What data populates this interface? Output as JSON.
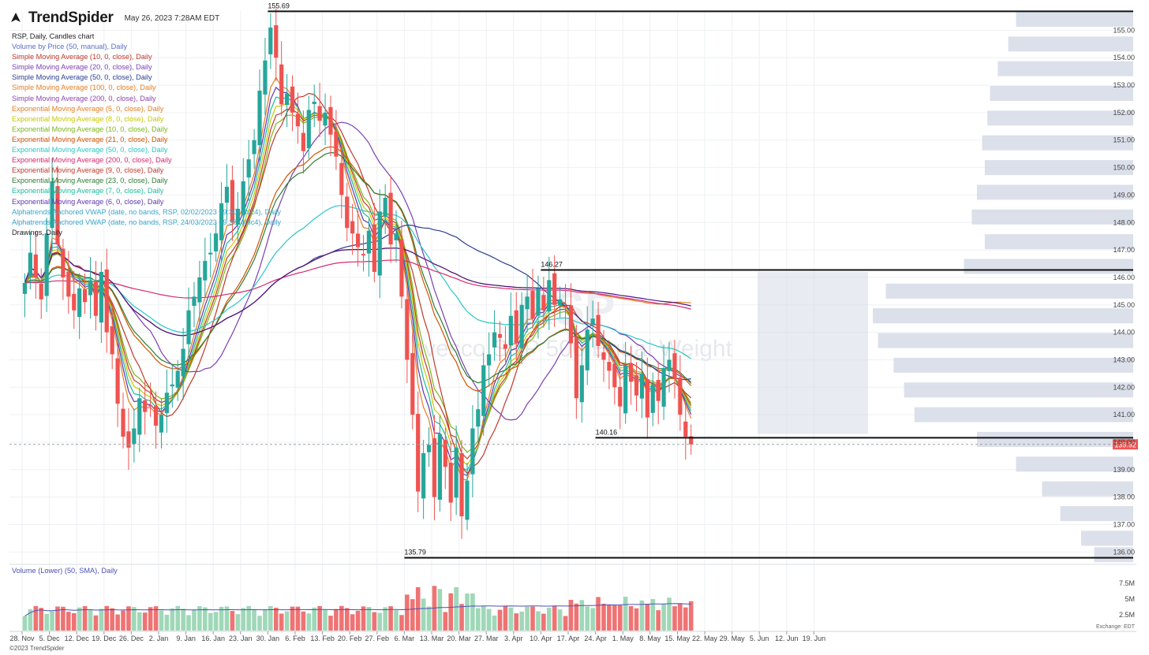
{
  "header": {
    "brand": "TrendSpider",
    "timestamp": "May 26, 2023 7:28AM EDT"
  },
  "legend": [
    {
      "text": "RSP, Daily, Candles chart",
      "color": "#222222"
    },
    {
      "text": "Volume by Price (50, manual), Daily",
      "color": "#5a6fc7"
    },
    {
      "text": "Simple Moving Average (10, 0, close), Daily",
      "color": "#c0392b"
    },
    {
      "text": "Simple Moving Average (20, 0, close), Daily",
      "color": "#7b3fb2"
    },
    {
      "text": "Simple Moving Average (50, 0, close), Daily",
      "color": "#2c3e8f"
    },
    {
      "text": "Simple Moving Average (100, 0, close), Daily",
      "color": "#e67e22"
    },
    {
      "text": "Simple Moving Average (200, 0, close), Daily",
      "color": "#8e44ad"
    },
    {
      "text": "Exponential Moving Average (5, 0, close), Daily",
      "color": "#e67e22"
    },
    {
      "text": "Exponential Moving Average (8, 0, close), Daily",
      "color": "#c9c900"
    },
    {
      "text": "Exponential Moving Average (10, 0, close), Daily",
      "color": "#7cb518"
    },
    {
      "text": "Exponential Moving Average (21, 0, close), Daily",
      "color": "#d35400"
    },
    {
      "text": "Exponential Moving Average (50, 0, close), Daily",
      "color": "#2bc6c6"
    },
    {
      "text": "Exponential Moving Average (200, 0, close), Daily",
      "color": "#d6286f"
    },
    {
      "text": "Exponential Moving Average (9, 0, close), Daily",
      "color": "#c0392b"
    },
    {
      "text": "Exponential Moving Average (23, 0, close), Daily",
      "color": "#2e7d32"
    },
    {
      "text": "Exponential Moving Average (7, 0, close), Daily",
      "color": "#1abc9c"
    },
    {
      "text": "Exponential Moving Average (6, 0, close), Daily",
      "color": "#5e35b1"
    },
    {
      "text": "Alphatrends Anchored VWAP (date, no bands, RSP, 02/02/2023 09:30, ohlc4), Daily",
      "color": "#3aa6c9"
    },
    {
      "text": "Alphatrends Anchored VWAP (date, no bands, RSP, 24/03/2023 09:30, ohlc4), Daily",
      "color": "#3aa6c9"
    },
    {
      "text": "Drawings, Daily",
      "color": "#222222"
    }
  ],
  "watermark": {
    "ticker": "RSP",
    "name": "Invesco S&P 500 Equal Weight"
  },
  "volume_title": "Volume (Lower) (50, SMA), Daily",
  "copyright": "©2023 TrendSpider",
  "colors": {
    "up": "#26a69a",
    "down": "#ef5350",
    "vol_up": "#9fd8b8",
    "vol_down": "#ef7373",
    "vbp": "#d5dbe6",
    "price_tag": "#ef5350"
  },
  "chart_data": {
    "type": "candlestick",
    "ticker": "RSP",
    "interval": "Daily",
    "y_ticks": [
      "155.00",
      "154.00",
      "153.00",
      "152.00",
      "151.00",
      "150.00",
      "149.00",
      "148.00",
      "147.00",
      "146.00",
      "145.00",
      "144.00",
      "143.00",
      "142.00",
      "141.00",
      "140.00",
      "139.00",
      "138.00",
      "137.00",
      "136.00"
    ],
    "ylim": [
      135.55,
      155.7
    ],
    "x_ticks": [
      "28. Nov",
      "5. Dec",
      "12. Dec",
      "19. Dec",
      "26. Dec",
      "2. Jan",
      "9. Jan",
      "16. Jan",
      "23. Jan",
      "30. Jan",
      "6. Feb",
      "13. Feb",
      "20. Feb",
      "27. Feb",
      "6. Mar",
      "13. Mar",
      "20. Mar",
      "27. Mar",
      "3. Apr",
      "10. Apr",
      "17. Apr",
      "24. Apr",
      "1. May",
      "8. May",
      "15. May",
      "22. May",
      "29. May",
      "5. Jun",
      "12. Jun",
      "19. Jun"
    ],
    "levels": [
      {
        "label": "155.69",
        "value": 155.69,
        "from_tick": 9
      },
      {
        "label": "146.27",
        "value": 146.27,
        "from_tick": 19
      },
      {
        "label": "140.16",
        "value": 140.16,
        "from_tick": 21
      },
      {
        "label": "135.79",
        "value": 135.79,
        "from_tick": 14
      }
    ],
    "last_price": "139.92",
    "last_value": 139.92,
    "closes": [
      145.8,
      146.9,
      146.0,
      145.2,
      147.6,
      149.5,
      147.2,
      146.0,
      145.3,
      144.8,
      145.6,
      145.1,
      145.9,
      144.6,
      146.2,
      144.0,
      143.2,
      141.4,
      140.2,
      139.8,
      140.5,
      141.6,
      141.1,
      141.3,
      140.6,
      141.0,
      141.8,
      142.1,
      142.6,
      143.4,
      144.8,
      145.3,
      146.0,
      146.6,
      146.9,
      147.6,
      148.7,
      149.3,
      148.0,
      148.5,
      149.5,
      150.3,
      151.0,
      152.8,
      153.9,
      155.1,
      154.0,
      152.3,
      152.7,
      152.0,
      151.5,
      150.6,
      152.1,
      152.4,
      151.7,
      152.0,
      151.2,
      150.4,
      149.0,
      147.8,
      147.6,
      147.1,
      146.8,
      147.7,
      146.2,
      148.4,
      148.9,
      147.2,
      147.6,
      145.3,
      143.0,
      141.0,
      138.2,
      139.6,
      139.9,
      138.0,
      140.3,
      139.1,
      137.8,
      139.8,
      137.3,
      138.6,
      140.5,
      141.2,
      142.8,
      143.2,
      144.0,
      143.8,
      143.4,
      144.6,
      143.6,
      145.0,
      145.3,
      144.5,
      145.6,
      144.8,
      145.9,
      145.0,
      145.2,
      144.9,
      143.6,
      141.6,
      142.8,
      144.1,
      144.5,
      143.5,
      143.0,
      142.6,
      142.0,
      141.3,
      142.8,
      142.2,
      141.7,
      142.5,
      140.9,
      142.1,
      141.5,
      142.7,
      143.0,
      142.3,
      141.0,
      140.2,
      139.92
    ],
    "volume_ylim": [
      0,
      9000000
    ],
    "volume_ticks": [
      {
        "label": "7.5M",
        "value": 7500000
      },
      {
        "label": "5M",
        "value": 5000000
      },
      {
        "label": "2.5M",
        "value": 2500000
      }
    ],
    "volume_exchange_label": "Exchange: EDT"
  }
}
